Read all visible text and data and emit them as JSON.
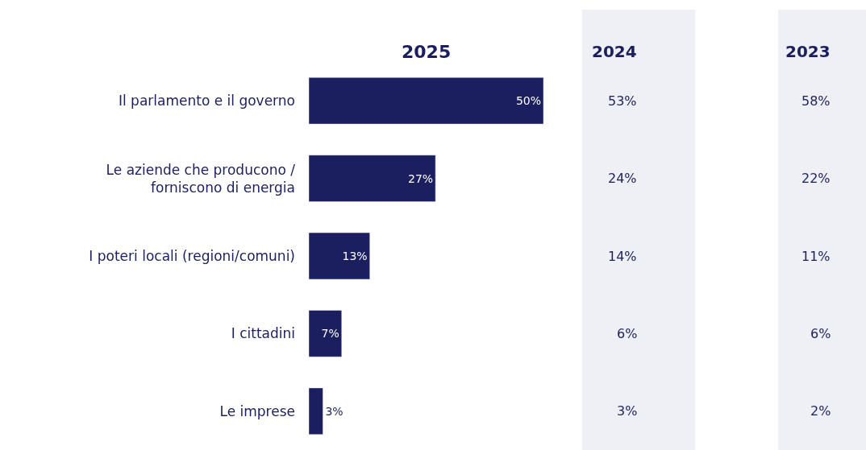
{
  "chart_data": [
    {
      "type": "bar",
      "orientation": "horizontal",
      "title": "2025",
      "categories": [
        "Il parlamento e il governo",
        "Le aziende che producono /\nforniscono di energia",
        "I poteri locali (regioni/comuni)",
        "I cittadini",
        "Le imprese"
      ],
      "values": [
        50,
        27,
        13,
        7,
        3
      ],
      "color": "#1b1f5f",
      "value_labels": [
        "50%",
        "27%",
        "13%",
        "7%",
        "3%"
      ]
    },
    {
      "type": "other",
      "title": "2024",
      "annotations": [
        "53%",
        "24%",
        "14%",
        "6%",
        "3%"
      ]
    },
    {
      "type": "other",
      "title": "2023",
      "annotations": [
        "58%",
        "22%",
        "11%",
        "6%",
        "2%"
      ]
    }
  ]
}
